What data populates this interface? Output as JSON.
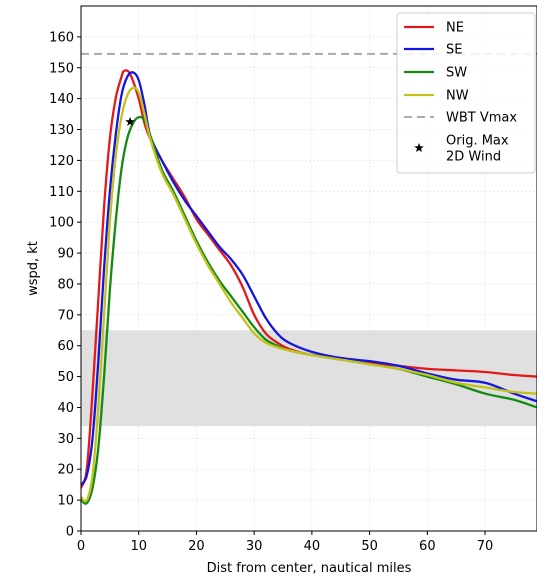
{
  "chart_data": {
    "type": "line",
    "xlabel": "Dist from center, nautical miles",
    "ylabel": "wspd, kt",
    "xlim": [
      0,
      79
    ],
    "ylim": [
      0,
      170
    ],
    "xticks": [
      0,
      10,
      20,
      30,
      40,
      50,
      60,
      70
    ],
    "yticks": [
      0,
      10,
      20,
      30,
      40,
      50,
      60,
      70,
      80,
      90,
      100,
      110,
      120,
      130,
      140,
      150,
      160
    ],
    "grid": true,
    "legend_position": "top-right",
    "shaded_band": {
      "y0": 34,
      "y1": 65,
      "color": "#e0e0e0"
    },
    "series": [
      {
        "name": "NE",
        "color": "#e31a1c",
        "points": [
          [
            0,
            14
          ],
          [
            1,
            20
          ],
          [
            2,
            45
          ],
          [
            3,
            75
          ],
          [
            4,
            105
          ],
          [
            5,
            127
          ],
          [
            6,
            140
          ],
          [
            7,
            147
          ],
          [
            7.5,
            149
          ],
          [
            8.5,
            148
          ],
          [
            10,
            140
          ],
          [
            11,
            132
          ],
          [
            12,
            127
          ],
          [
            14,
            120
          ],
          [
            16,
            114
          ],
          [
            18,
            108
          ],
          [
            20,
            101
          ],
          [
            22,
            96
          ],
          [
            24,
            91
          ],
          [
            26,
            86
          ],
          [
            28,
            79
          ],
          [
            30,
            70
          ],
          [
            32,
            64
          ],
          [
            34,
            61
          ],
          [
            36,
            59
          ],
          [
            40,
            57
          ],
          [
            45,
            56
          ],
          [
            50,
            54.5
          ],
          [
            55,
            53.5
          ],
          [
            60,
            52.5
          ],
          [
            65,
            52
          ],
          [
            70,
            51.5
          ],
          [
            75,
            50.5
          ],
          [
            79,
            50
          ]
        ]
      },
      {
        "name": "SE",
        "color": "#1515e0",
        "points": [
          [
            0,
            15
          ],
          [
            1,
            18
          ],
          [
            2,
            30
          ],
          [
            3,
            55
          ],
          [
            4,
            85
          ],
          [
            5,
            110
          ],
          [
            6,
            128
          ],
          [
            7,
            141
          ],
          [
            8,
            147
          ],
          [
            9,
            148.5
          ],
          [
            10,
            146
          ],
          [
            11,
            138
          ],
          [
            12,
            128
          ],
          [
            14,
            120
          ],
          [
            16,
            113
          ],
          [
            18,
            107
          ],
          [
            20,
            102
          ],
          [
            22,
            97
          ],
          [
            24,
            92
          ],
          [
            26,
            88
          ],
          [
            28,
            83
          ],
          [
            30,
            76
          ],
          [
            32,
            69
          ],
          [
            34,
            64
          ],
          [
            36,
            61
          ],
          [
            40,
            58
          ],
          [
            45,
            56
          ],
          [
            50,
            55
          ],
          [
            55,
            53.5
          ],
          [
            60,
            51
          ],
          [
            65,
            49
          ],
          [
            70,
            48
          ],
          [
            75,
            44.5
          ],
          [
            79,
            42
          ]
        ]
      },
      {
        "name": "SW",
        "color": "#138a13",
        "points": [
          [
            0,
            10
          ],
          [
            1,
            9
          ],
          [
            2,
            14
          ],
          [
            3,
            27
          ],
          [
            4,
            50
          ],
          [
            5,
            78
          ],
          [
            6,
            100
          ],
          [
            7,
            117
          ],
          [
            8,
            127
          ],
          [
            9,
            132
          ],
          [
            10,
            134
          ],
          [
            11,
            133
          ],
          [
            12,
            128
          ],
          [
            14,
            117
          ],
          [
            16,
            110
          ],
          [
            18,
            102
          ],
          [
            20,
            94
          ],
          [
            22,
            87
          ],
          [
            24,
            81
          ],
          [
            26,
            76
          ],
          [
            28,
            71
          ],
          [
            30,
            66
          ],
          [
            32,
            62
          ],
          [
            34,
            60
          ],
          [
            36,
            58.5
          ],
          [
            40,
            57
          ],
          [
            45,
            55.5
          ],
          [
            50,
            54
          ],
          [
            55,
            52.5
          ],
          [
            60,
            50
          ],
          [
            65,
            47.5
          ],
          [
            70,
            44.5
          ],
          [
            75,
            42.5
          ],
          [
            79,
            40
          ]
        ]
      },
      {
        "name": "NW",
        "color": "#c2c21a",
        "points": [
          [
            0,
            11
          ],
          [
            1,
            10
          ],
          [
            2,
            18
          ],
          [
            3,
            40
          ],
          [
            4,
            70
          ],
          [
            5,
            100
          ],
          [
            6,
            121
          ],
          [
            7,
            134
          ],
          [
            8,
            141
          ],
          [
            9,
            143.5
          ],
          [
            10,
            142
          ],
          [
            11,
            135
          ],
          [
            12,
            127
          ],
          [
            14,
            116
          ],
          [
            16,
            109
          ],
          [
            18,
            101
          ],
          [
            20,
            93
          ],
          [
            22,
            86
          ],
          [
            24,
            80
          ],
          [
            26,
            74
          ],
          [
            28,
            69
          ],
          [
            30,
            64
          ],
          [
            32,
            61
          ],
          [
            34,
            59.5
          ],
          [
            36,
            58.5
          ],
          [
            40,
            57
          ],
          [
            45,
            55.5
          ],
          [
            50,
            54
          ],
          [
            55,
            52.5
          ],
          [
            60,
            50.5
          ],
          [
            65,
            48
          ],
          [
            70,
            46.5
          ],
          [
            75,
            45
          ],
          [
            79,
            44.5
          ]
        ]
      },
      {
        "name": "WBT Vmax",
        "color": "#aaaaaa",
        "dashed": true,
        "points": [
          [
            0,
            154.5
          ],
          [
            79,
            154.5
          ]
        ]
      }
    ],
    "annotations": [
      {
        "name": "Orig. Max 2D Wind",
        "marker": "star",
        "x": 8.5,
        "y": 132.5,
        "color": "#000000"
      }
    ],
    "legend": [
      {
        "label": "NE",
        "color": "#e31a1c",
        "style": "line"
      },
      {
        "label": "SE",
        "color": "#1515e0",
        "style": "line"
      },
      {
        "label": "SW",
        "color": "#138a13",
        "style": "line"
      },
      {
        "label": "NW",
        "color": "#c2c21a",
        "style": "line"
      },
      {
        "label": "WBT Vmax",
        "color": "#aaaaaa",
        "style": "dashed"
      },
      {
        "label": "Orig. Max 2D Wind",
        "lines": [
          "Orig. Max",
          "2D Wind"
        ],
        "color": "#000000",
        "style": "star"
      }
    ]
  }
}
